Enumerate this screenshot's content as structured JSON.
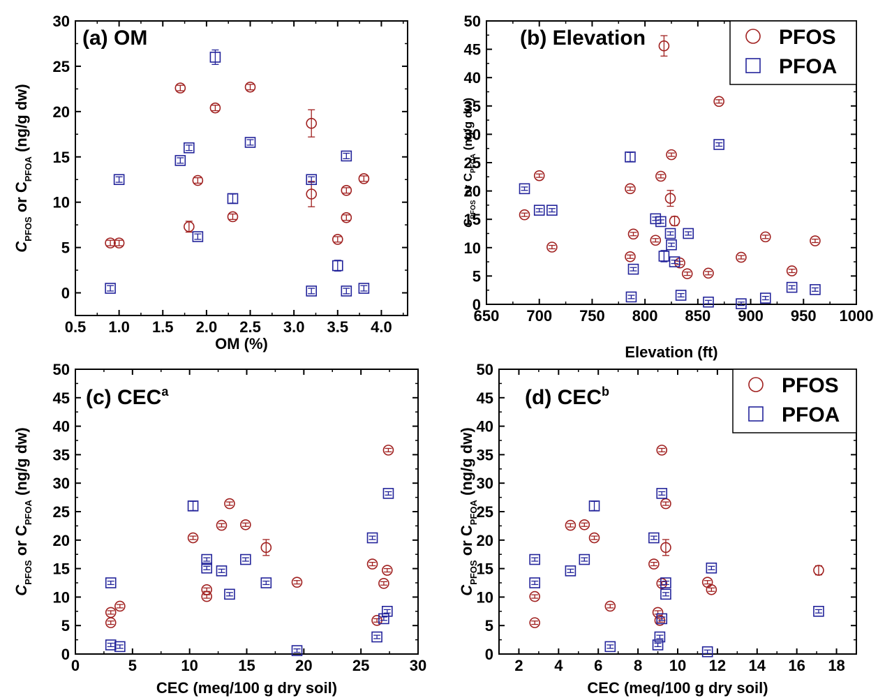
{
  "colors": {
    "pfos": "#a0201f",
    "pfoa": "#22239a",
    "axis": "#000000"
  },
  "legend": {
    "pfos_label": "PFOS",
    "pfoa_label": "PFOA"
  },
  "ylabel_main": "C",
  "ylabel_sub1": "PFOS",
  "ylabel_mid": " or C",
  "ylabel_sub2": "PFOA",
  "ylabel_unit": " (ng/g dw)",
  "chart_data": [
    {
      "id": "a",
      "type": "scatter",
      "title": "(a) OM",
      "title_sup": "",
      "xlabel": "OM (%)",
      "xlim": [
        0.5,
        4.3
      ],
      "ylim": [
        -2.5,
        30
      ],
      "xticks": [
        0.5,
        1.0,
        1.5,
        2.0,
        2.5,
        3.0,
        3.5,
        4.0
      ],
      "xtick_labels": [
        "0.5",
        "1.0",
        "1.5",
        "2.0",
        "2.5",
        "3.0",
        "3.5",
        "4.0"
      ],
      "yticks": [
        0,
        5,
        10,
        15,
        20,
        25,
        30
      ],
      "legend": false,
      "series": [
        {
          "name": "PFOS",
          "marker": "circle",
          "points": [
            {
              "x": 0.9,
              "y": 5.5,
              "err": 0.3
            },
            {
              "x": 1.0,
              "y": 5.5,
              "err": 0.3
            },
            {
              "x": 1.7,
              "y": 22.6,
              "err": 0.3
            },
            {
              "x": 1.8,
              "y": 7.3,
              "err": 0.6
            },
            {
              "x": 1.9,
              "y": 12.4,
              "err": 0.3
            },
            {
              "x": 2.1,
              "y": 20.4,
              "err": 0.3
            },
            {
              "x": 2.3,
              "y": 8.4,
              "err": 0.3
            },
            {
              "x": 2.5,
              "y": 22.7,
              "err": 0.3
            },
            {
              "x": 3.2,
              "y": 18.7,
              "err": 1.5
            },
            {
              "x": 3.2,
              "y": 10.9,
              "err": 1.4
            },
            {
              "x": 3.5,
              "y": 5.9,
              "err": 0.3
            },
            {
              "x": 3.6,
              "y": 11.3,
              "err": 0.3
            },
            {
              "x": 3.6,
              "y": 8.3,
              "err": 0.3
            },
            {
              "x": 3.8,
              "y": 12.6,
              "err": 0.3
            }
          ]
        },
        {
          "name": "PFOA",
          "marker": "square",
          "points": [
            {
              "x": 0.9,
              "y": 0.5,
              "err": 0.3
            },
            {
              "x": 1.0,
              "y": 12.5,
              "err": 0.3
            },
            {
              "x": 1.7,
              "y": 14.6,
              "err": 0.3
            },
            {
              "x": 1.8,
              "y": 16.0,
              "err": 0.3
            },
            {
              "x": 1.9,
              "y": 6.2,
              "err": 0.3
            },
            {
              "x": 2.1,
              "y": 26.0,
              "err": 0.8
            },
            {
              "x": 2.3,
              "y": 10.4,
              "err": 0.5
            },
            {
              "x": 2.5,
              "y": 16.6,
              "err": 0.3
            },
            {
              "x": 3.2,
              "y": 12.5,
              "err": 0.3
            },
            {
              "x": 3.2,
              "y": 0.2,
              "err": 0.3
            },
            {
              "x": 3.5,
              "y": 3.0,
              "err": 0.6
            },
            {
              "x": 3.6,
              "y": 15.1,
              "err": 0.3
            },
            {
              "x": 3.6,
              "y": 0.2,
              "err": 0.3
            },
            {
              "x": 3.8,
              "y": 0.5,
              "err": 0.3
            }
          ]
        }
      ]
    },
    {
      "id": "b",
      "type": "scatter",
      "title": "(b) Elevation",
      "title_sup": "",
      "xlabel": "Elevation (ft)",
      "xlim": [
        650,
        1000
      ],
      "ylim": [
        0,
        50
      ],
      "xticks": [
        650,
        700,
        750,
        800,
        850,
        900,
        950,
        1000
      ],
      "xtick_labels": [
        "650",
        "700",
        "750",
        "800",
        "850",
        "900",
        "950",
        "1000"
      ],
      "yticks": [
        0,
        5,
        10,
        15,
        20,
        25,
        30,
        35,
        40,
        45,
        50
      ],
      "legend": true,
      "series": [
        {
          "name": "PFOS",
          "marker": "circle",
          "points": [
            {
              "x": 686,
              "y": 15.8,
              "err": 0.3
            },
            {
              "x": 700,
              "y": 22.7,
              "err": 0.3
            },
            {
              "x": 712,
              "y": 10.1,
              "err": 0.3
            },
            {
              "x": 786,
              "y": 20.4,
              "err": 0.3
            },
            {
              "x": 786,
              "y": 8.4,
              "err": 0.3
            },
            {
              "x": 789,
              "y": 12.4,
              "err": 0.3
            },
            {
              "x": 810,
              "y": 11.3,
              "err": 0.3
            },
            {
              "x": 815,
              "y": 22.6,
              "err": 0.3
            },
            {
              "x": 818,
              "y": 45.6,
              "err": 1.8
            },
            {
              "x": 824,
              "y": 18.7,
              "err": 1.4
            },
            {
              "x": 825,
              "y": 26.4,
              "err": 0.3
            },
            {
              "x": 828,
              "y": 14.7,
              "err": 0.8
            },
            {
              "x": 833,
              "y": 7.3,
              "err": 0.3
            },
            {
              "x": 840,
              "y": 5.4,
              "err": 0.3
            },
            {
              "x": 860,
              "y": 5.5,
              "err": 0.3
            },
            {
              "x": 870,
              "y": 35.8,
              "err": 0.3
            },
            {
              "x": 891,
              "y": 8.3,
              "err": 0.3
            },
            {
              "x": 914,
              "y": 11.9,
              "err": 0.3
            },
            {
              "x": 939,
              "y": 5.9,
              "err": 0.3
            },
            {
              "x": 961,
              "y": 11.2,
              "err": 0.3
            }
          ]
        },
        {
          "name": "PFOA",
          "marker": "square",
          "points": [
            {
              "x": 686,
              "y": 20.4,
              "err": 0.3
            },
            {
              "x": 700,
              "y": 16.6,
              "err": 0.3
            },
            {
              "x": 712,
              "y": 16.6,
              "err": 0.3
            },
            {
              "x": 786,
              "y": 26.0,
              "err": 0.8
            },
            {
              "x": 787,
              "y": 1.3,
              "err": 0.3
            },
            {
              "x": 789,
              "y": 6.2,
              "err": 0.3
            },
            {
              "x": 810,
              "y": 15.1,
              "err": 0.3
            },
            {
              "x": 815,
              "y": 14.6,
              "err": 0.3
            },
            {
              "x": 818,
              "y": 8.5,
              "err": 1.0
            },
            {
              "x": 824,
              "y": 12.5,
              "err": 0.3
            },
            {
              "x": 825,
              "y": 10.5,
              "err": 0.3
            },
            {
              "x": 828,
              "y": 7.5,
              "err": 0.3
            },
            {
              "x": 834,
              "y": 1.6,
              "err": 0.3
            },
            {
              "x": 841,
              "y": 12.5,
              "err": 0.3
            },
            {
              "x": 860,
              "y": 0.4,
              "err": 0.3
            },
            {
              "x": 870,
              "y": 28.2,
              "err": 0.3
            },
            {
              "x": 891,
              "y": 0.1,
              "err": 0.3
            },
            {
              "x": 914,
              "y": 1.1,
              "err": 0.3
            },
            {
              "x": 939,
              "y": 3.0,
              "err": 0.3
            },
            {
              "x": 961,
              "y": 2.6,
              "err": 0.3
            }
          ]
        }
      ]
    },
    {
      "id": "c",
      "type": "scatter",
      "title": "(c) CEC",
      "title_sup": "a",
      "xlabel": "CEC (meq/100 g dry soil)",
      "xlim": [
        0,
        30
      ],
      "ylim": [
        0,
        50
      ],
      "xticks": [
        0,
        5,
        10,
        15,
        20,
        25,
        30
      ],
      "xtick_labels": [
        "0",
        "5",
        "10",
        "15",
        "20",
        "25",
        "30"
      ],
      "yticks": [
        0,
        5,
        10,
        15,
        20,
        25,
        30,
        35,
        40,
        45,
        50
      ],
      "legend": false,
      "series": [
        {
          "name": "PFOS",
          "marker": "circle",
          "points": [
            {
              "x": 3.1,
              "y": 7.3,
              "err": 0.3
            },
            {
              "x": 3.1,
              "y": 5.5,
              "err": 0.3
            },
            {
              "x": 3.9,
              "y": 8.4,
              "err": 0.3
            },
            {
              "x": 10.3,
              "y": 20.4,
              "err": 0.3
            },
            {
              "x": 11.5,
              "y": 11.3,
              "err": 0.3
            },
            {
              "x": 11.5,
              "y": 10.1,
              "err": 0.3
            },
            {
              "x": 12.8,
              "y": 22.6,
              "err": 0.3
            },
            {
              "x": 13.5,
              "y": 26.4,
              "err": 0.3
            },
            {
              "x": 14.9,
              "y": 22.7,
              "err": 0.3
            },
            {
              "x": 16.7,
              "y": 18.7,
              "err": 1.4
            },
            {
              "x": 19.4,
              "y": 12.6,
              "err": 0.3
            },
            {
              "x": 26.0,
              "y": 15.8,
              "err": 0.3
            },
            {
              "x": 26.4,
              "y": 5.9,
              "err": 0.3
            },
            {
              "x": 27.0,
              "y": 12.4,
              "err": 0.3
            },
            {
              "x": 27.3,
              "y": 14.7,
              "err": 0.3
            },
            {
              "x": 27.4,
              "y": 35.8,
              "err": 0.3
            }
          ]
        },
        {
          "name": "PFOA",
          "marker": "square",
          "points": [
            {
              "x": 3.1,
              "y": 12.5,
              "err": 0.3
            },
            {
              "x": 3.1,
              "y": 1.6,
              "err": 0.3
            },
            {
              "x": 3.9,
              "y": 1.3,
              "err": 0.3
            },
            {
              "x": 10.3,
              "y": 26.0,
              "err": 0.8
            },
            {
              "x": 11.5,
              "y": 16.6,
              "err": 0.3
            },
            {
              "x": 11.5,
              "y": 15.1,
              "err": 0.3
            },
            {
              "x": 12.8,
              "y": 14.6,
              "err": 0.3
            },
            {
              "x": 13.5,
              "y": 10.5,
              "err": 0.3
            },
            {
              "x": 14.9,
              "y": 16.6,
              "err": 0.3
            },
            {
              "x": 16.7,
              "y": 12.5,
              "err": 0.3
            },
            {
              "x": 19.4,
              "y": 0.6,
              "err": 0.3
            },
            {
              "x": 26.0,
              "y": 20.4,
              "err": 0.3
            },
            {
              "x": 26.4,
              "y": 3.0,
              "err": 0.3
            },
            {
              "x": 27.0,
              "y": 6.2,
              "err": 0.3
            },
            {
              "x": 27.3,
              "y": 7.5,
              "err": 0.3
            },
            {
              "x": 27.4,
              "y": 28.2,
              "err": 0.3
            }
          ]
        }
      ]
    },
    {
      "id": "d",
      "type": "scatter",
      "title": "(d) CEC",
      "title_sup": "b",
      "xlabel": "CEC (meq/100 g dry soil)",
      "xlim": [
        1,
        19
      ],
      "ylim": [
        0,
        50
      ],
      "xticks": [
        2,
        4,
        6,
        8,
        10,
        12,
        14,
        16,
        18
      ],
      "xtick_labels": [
        "2",
        "4",
        "6",
        "8",
        "10",
        "12",
        "14",
        "16",
        "18"
      ],
      "yticks": [
        0,
        5,
        10,
        15,
        20,
        25,
        30,
        35,
        40,
        45,
        50
      ],
      "legend": true,
      "series": [
        {
          "name": "PFOS",
          "marker": "circle",
          "points": [
            {
              "x": 2.8,
              "y": 10.1,
              "err": 0.3
            },
            {
              "x": 2.8,
              "y": 5.5,
              "err": 0.3
            },
            {
              "x": 4.6,
              "y": 22.6,
              "err": 0.3
            },
            {
              "x": 5.3,
              "y": 22.7,
              "err": 0.3
            },
            {
              "x": 5.8,
              "y": 20.4,
              "err": 0.3
            },
            {
              "x": 6.6,
              "y": 8.4,
              "err": 0.3
            },
            {
              "x": 8.8,
              "y": 15.8,
              "err": 0.3
            },
            {
              "x": 9.0,
              "y": 7.3,
              "err": 0.3
            },
            {
              "x": 9.1,
              "y": 5.9,
              "err": 0.3
            },
            {
              "x": 9.2,
              "y": 35.8,
              "err": 0.3
            },
            {
              "x": 9.2,
              "y": 12.4,
              "err": 0.3
            },
            {
              "x": 9.4,
              "y": 26.4,
              "err": 0.3
            },
            {
              "x": 9.4,
              "y": 18.7,
              "err": 1.4
            },
            {
              "x": 11.5,
              "y": 12.6,
              "err": 0.3
            },
            {
              "x": 11.7,
              "y": 11.3,
              "err": 0.3
            },
            {
              "x": 17.1,
              "y": 14.7,
              "err": 0.8
            }
          ]
        },
        {
          "name": "PFOA",
          "marker": "square",
          "points": [
            {
              "x": 2.8,
              "y": 16.6,
              "err": 0.3
            },
            {
              "x": 2.8,
              "y": 12.5,
              "err": 0.3
            },
            {
              "x": 4.6,
              "y": 14.6,
              "err": 0.3
            },
            {
              "x": 5.3,
              "y": 16.6,
              "err": 0.3
            },
            {
              "x": 5.8,
              "y": 26.0,
              "err": 0.8
            },
            {
              "x": 6.6,
              "y": 1.3,
              "err": 0.3
            },
            {
              "x": 8.8,
              "y": 20.4,
              "err": 0.3
            },
            {
              "x": 9.0,
              "y": 1.6,
              "err": 0.3
            },
            {
              "x": 9.1,
              "y": 3.0,
              "err": 0.3
            },
            {
              "x": 9.2,
              "y": 28.2,
              "err": 0.3
            },
            {
              "x": 9.2,
              "y": 6.2,
              "err": 0.3
            },
            {
              "x": 9.4,
              "y": 12.5,
              "err": 0.3
            },
            {
              "x": 9.4,
              "y": 10.5,
              "err": 0.3
            },
            {
              "x": 11.5,
              "y": 0.4,
              "err": 0.3
            },
            {
              "x": 11.7,
              "y": 15.1,
              "err": 0.3
            },
            {
              "x": 17.1,
              "y": 7.5,
              "err": 0.3
            }
          ]
        }
      ]
    }
  ]
}
